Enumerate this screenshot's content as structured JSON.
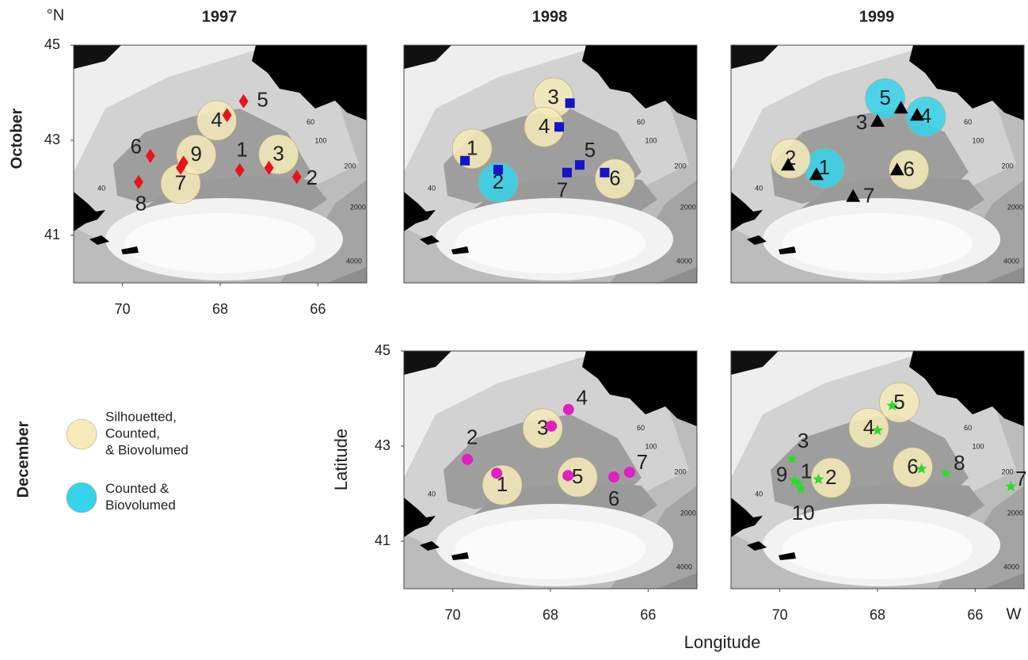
{
  "years": [
    "1997",
    "1998",
    "1999"
  ],
  "months": [
    "October",
    "December"
  ],
  "lat_unit": "°N",
  "lon_unit": "W",
  "x_label": "Longitude",
  "y_label": "Latitude",
  "lonlim": [
    71,
    65
  ],
  "latlim": [
    45,
    40
  ],
  "xticks": [
    70,
    68,
    66
  ],
  "yticks": [
    45,
    43,
    41
  ],
  "legend": [
    {
      "lines": [
        "Silhouetted,",
        "Counted,",
        "& Biovolumed"
      ],
      "color": "#f6ebb8"
    },
    {
      "lines": [
        "Counted &",
        "Biovolumed"
      ],
      "color": "#35d3ec"
    }
  ],
  "contour_labels": [
    {
      "label": "60",
      "lon": 66.15,
      "lat": 43.37
    },
    {
      "label": "100",
      "lon": 65.94,
      "lat": 42.98
    },
    {
      "label": "200",
      "lon": 65.34,
      "lat": 42.45
    },
    {
      "label": "2000",
      "lon": 65.18,
      "lat": 41.58
    },
    {
      "label": "4000",
      "lon": 65.26,
      "lat": 40.45
    },
    {
      "label": "40",
      "lon": 70.43,
      "lat": 41.98
    }
  ],
  "panels": [
    {
      "year": 0,
      "month": 0,
      "marker": "diamond",
      "color": "#e8141c",
      "stations": [
        {
          "label": "1",
          "lon": 67.6,
          "lat": 42.37
        },
        {
          "label": "2",
          "lon": 66.43,
          "lat": 42.23
        },
        {
          "label": "3",
          "lon": 67.0,
          "lat": 42.42,
          "sample": 0
        },
        {
          "label": "4",
          "lon": 67.86,
          "lat": 43.53,
          "sample": 0
        },
        {
          "label": "5",
          "lon": 67.52,
          "lat": 43.82
        },
        {
          "label": "6",
          "lon": 69.43,
          "lat": 42.67
        },
        {
          "label": "7",
          "lon": 68.81,
          "lat": 42.42,
          "sample": 0
        },
        {
          "label": "8",
          "lon": 69.67,
          "lat": 42.12
        },
        {
          "label": "9",
          "lon": 68.75,
          "lat": 42.53,
          "sample": 0
        }
      ]
    },
    {
      "year": 1,
      "month": 0,
      "marker": "square",
      "color": "#1414c8",
      "stations": [
        {
          "label": "1",
          "lon": 69.75,
          "lat": 42.57,
          "sample": 0
        },
        {
          "label": "2",
          "lon": 69.07,
          "lat": 42.38,
          "sample": 1
        },
        {
          "label": "3",
          "lon": 67.6,
          "lat": 43.78,
          "sample": 0
        },
        {
          "label": "4",
          "lon": 67.82,
          "lat": 43.28,
          "sample": 0
        },
        {
          "label": "5",
          "lon": 67.4,
          "lat": 42.48
        },
        {
          "label": "6",
          "lon": 66.89,
          "lat": 42.32,
          "sample": 0
        },
        {
          "label": "7",
          "lon": 67.66,
          "lat": 42.32
        }
      ]
    },
    {
      "year": 2,
      "month": 0,
      "marker": "triangle",
      "color": "#000000",
      "stations": [
        {
          "label": "1",
          "lon": 69.25,
          "lat": 42.28,
          "sample": 1
        },
        {
          "label": "2",
          "lon": 69.83,
          "lat": 42.48,
          "sample": 0
        },
        {
          "label": "3",
          "lon": 68.0,
          "lat": 43.4
        },
        {
          "label": "4",
          "lon": 67.19,
          "lat": 43.53,
          "sample": 1
        },
        {
          "label": "5",
          "lon": 67.52,
          "lat": 43.68,
          "sample": 1
        },
        {
          "label": "6",
          "lon": 67.6,
          "lat": 42.38,
          "sample": 0
        },
        {
          "label": "7",
          "lon": 68.5,
          "lat": 41.82
        }
      ]
    },
    {
      "year": 1,
      "month": 1,
      "marker": "circle",
      "color": "#e020c0",
      "stations": [
        {
          "label": "1",
          "lon": 69.1,
          "lat": 42.43,
          "sample": 0
        },
        {
          "label": "2",
          "lon": 69.7,
          "lat": 42.72
        },
        {
          "label": "3",
          "lon": 67.98,
          "lat": 43.42,
          "sample": 0
        },
        {
          "label": "4",
          "lon": 67.63,
          "lat": 43.77
        },
        {
          "label": "5",
          "lon": 67.64,
          "lat": 42.38,
          "sample": 0
        },
        {
          "label": "6",
          "lon": 66.7,
          "lat": 42.35
        },
        {
          "label": "7",
          "lon": 66.38,
          "lat": 42.45
        }
      ]
    },
    {
      "year": 2,
      "month": 1,
      "marker": "star",
      "color": "#2ed82e",
      "stations": [
        {
          "label": "1",
          "lon": 69.62,
          "lat": 42.22
        },
        {
          "label": "2",
          "lon": 69.21,
          "lat": 42.3,
          "sample": 0
        },
        {
          "label": "3",
          "lon": 69.75,
          "lat": 42.73
        },
        {
          "label": "4",
          "lon": 68.0,
          "lat": 43.33,
          "sample": 0
        },
        {
          "label": "5",
          "lon": 67.7,
          "lat": 43.85,
          "sample": 0
        },
        {
          "label": "6",
          "lon": 67.1,
          "lat": 42.52,
          "sample": 0
        },
        {
          "label": "7",
          "lon": 65.27,
          "lat": 42.15
        },
        {
          "label": "8",
          "lon": 66.6,
          "lat": 42.43
        },
        {
          "label": "9",
          "lon": 69.7,
          "lat": 42.27
        },
        {
          "label": "10",
          "lon": 69.57,
          "lat": 42.1
        }
      ]
    }
  ]
}
